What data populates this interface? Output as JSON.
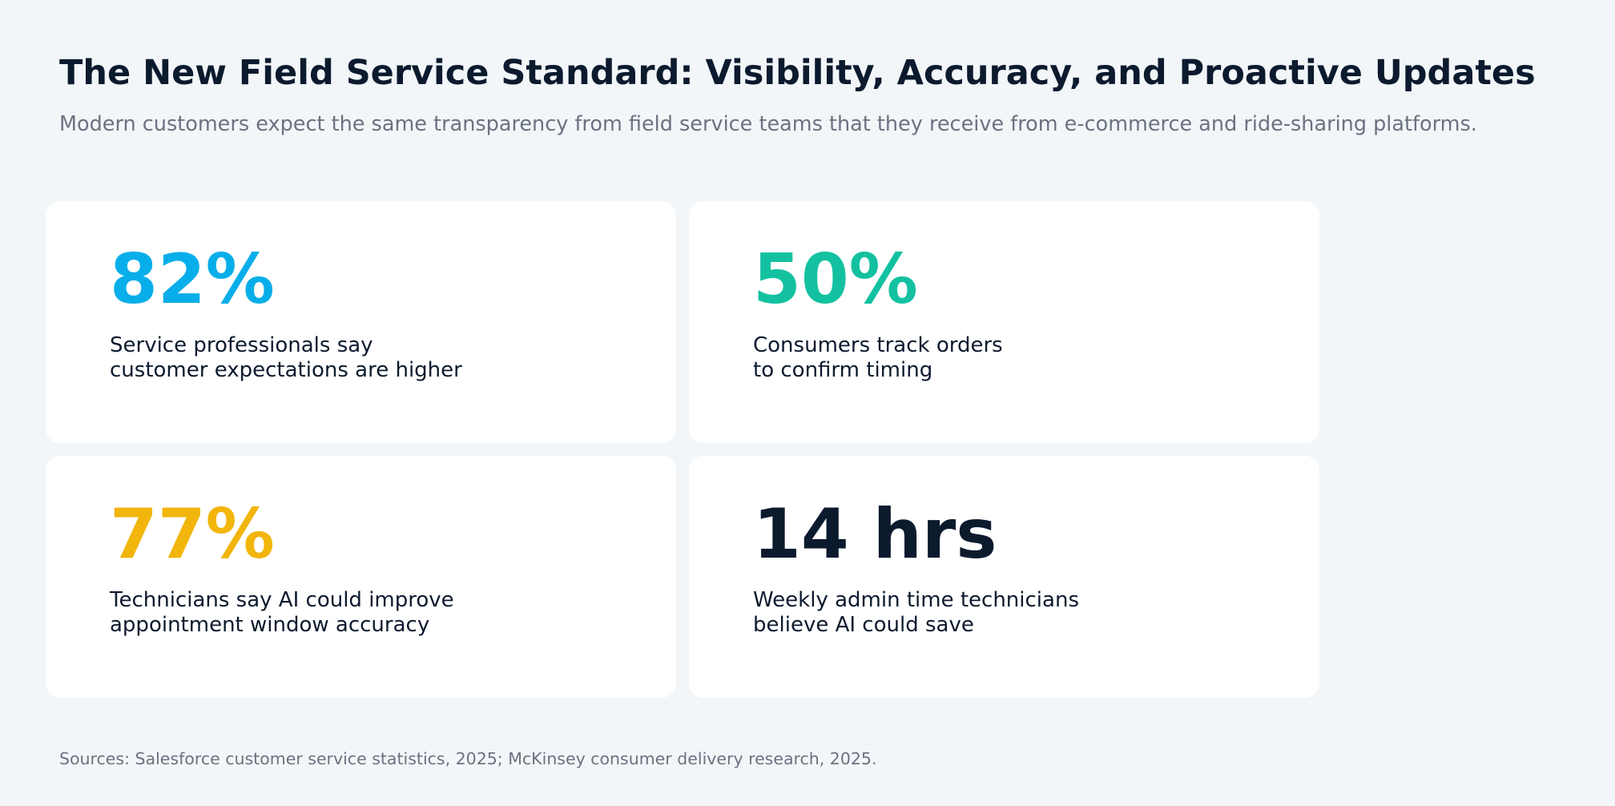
{
  "header": {
    "title": "The New Field Service Standard: Visibility, Accuracy, and Proactive Updates",
    "subtitle": "Modern customers expect the same transparency from field service teams that they receive from e-commerce and ride-sharing platforms."
  },
  "cards": [
    {
      "stat": "82%",
      "color": "#08aee9",
      "lines": [
        "Service professionals say",
        "customer expectations are higher"
      ]
    },
    {
      "stat": "50%",
      "color": "#13c1a1",
      "lines": [
        "Consumers track orders",
        "to confirm timing"
      ]
    },
    {
      "stat": "77%",
      "color": "#f2b50b",
      "lines": [
        "Technicians say AI could improve",
        "appointment window accuracy"
      ]
    },
    {
      "stat": "14 hrs",
      "color": "#0c1a2e",
      "lines": [
        "Weekly admin time technicians",
        "believe AI could save"
      ]
    }
  ],
  "footer": {
    "source": "Sources: Salesforce customer service statistics, 2025; McKinsey consumer delivery research, 2025."
  }
}
